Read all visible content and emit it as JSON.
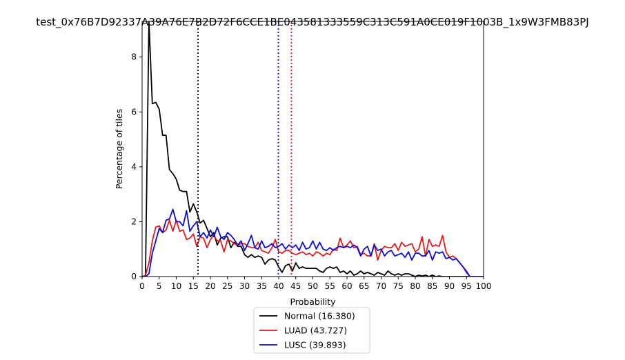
{
  "chart_data": {
    "type": "line",
    "title": "test_0x76B7D92337A39A76E7B2D72F6CCE1BE043581333559C313C591A0CE019F1003B_1x9W3FMB83PJ",
    "xlabel": "Probability",
    "ylabel": "Percentage of tiles",
    "xlim": [
      0,
      100
    ],
    "ylim": [
      0,
      9.3
    ],
    "xticks": [
      0,
      5,
      10,
      15,
      20,
      25,
      30,
      35,
      40,
      45,
      50,
      55,
      60,
      65,
      70,
      75,
      80,
      85,
      90,
      95,
      100
    ],
    "yticks": [
      0,
      2,
      4,
      6,
      8
    ],
    "grid": false,
    "legend_position": "below the plot",
    "x": [
      0,
      1,
      2,
      3,
      4,
      5,
      6,
      7,
      8,
      9,
      10,
      11,
      12,
      13,
      14,
      15,
      16,
      17,
      18,
      19,
      20,
      21,
      22,
      23,
      24,
      25,
      26,
      27,
      28,
      29,
      30,
      31,
      32,
      33,
      34,
      35,
      36,
      37,
      38,
      39,
      40,
      41,
      42,
      43,
      44,
      45,
      46,
      47,
      48,
      49,
      50,
      51,
      52,
      53,
      54,
      55,
      56,
      57,
      58,
      59,
      60,
      61,
      62,
      63,
      64,
      65,
      66,
      67,
      68,
      69,
      70,
      71,
      72,
      73,
      74,
      75,
      76,
      77,
      78,
      79,
      80,
      81,
      82,
      83,
      84,
      85,
      86,
      87,
      88,
      89,
      90,
      91,
      92,
      93,
      94,
      95,
      96,
      97,
      98,
      99,
      100
    ],
    "series": [
      {
        "name": "Normal (16.380)",
        "color": "#000000",
        "values": [
          0,
          0,
          9.3,
          6.3,
          6.35,
          6.1,
          5.15,
          5.15,
          3.9,
          3.75,
          3.55,
          3.15,
          3.1,
          3.1,
          2.35,
          2.65,
          2.35,
          1.95,
          2.05,
          1.75,
          1.45,
          1.6,
          1.15,
          1.4,
          1.45,
          1.45,
          1.05,
          1.25,
          1.1,
          1.1,
          0.8,
          0.7,
          0.8,
          0.7,
          0.75,
          0.7,
          0.45,
          0.6,
          0.65,
          0.6,
          0.35,
          0.15,
          0.4,
          0.45,
          0.2,
          0.5,
          0.3,
          0.35,
          0.3,
          0.3,
          0.3,
          0.3,
          0.2,
          0.15,
          0.3,
          0.35,
          0.3,
          0.35,
          0.15,
          0.2,
          0.1,
          0.2,
          0.05,
          0.1,
          0.2,
          0.1,
          0.15,
          0.1,
          0.05,
          0.15,
          0.1,
          0.05,
          0.2,
          0.1,
          0.05,
          0.1,
          0.05,
          0.1,
          0.1,
          0.05,
          0.0,
          0.05,
          0.02,
          0.05,
          0.0,
          0.05,
          0.0,
          0.02,
          0.0,
          0.0,
          0.0,
          0.0,
          0.0,
          0.0,
          0.0,
          0.0,
          0.0,
          0.0,
          0.0,
          0.0,
          0.0
        ]
      },
      {
        "name": "LUAD (43.727)",
        "color": "#e31a1c",
        "values": [
          0,
          0.05,
          0.5,
          1.3,
          1.8,
          1.85,
          1.6,
          1.7,
          2.05,
          1.65,
          2.05,
          1.65,
          1.7,
          1.35,
          1.4,
          1.55,
          1.1,
          1.45,
          1.4,
          1.05,
          1.35,
          1.5,
          1.3,
          1.3,
          0.9,
          1.35,
          1.3,
          1.2,
          1.15,
          1.2,
          1.2,
          1.1,
          1.05,
          1.05,
          1.25,
          0.95,
          0.9,
          0.85,
          1.05,
          1.35,
          0.9,
          0.85,
          0.95,
          0.95,
          0.85,
          0.8,
          0.85,
          0.9,
          0.8,
          0.85,
          0.75,
          0.9,
          0.85,
          0.75,
          0.85,
          0.8,
          1.0,
          0.95,
          1.4,
          1.05,
          1.15,
          1.3,
          1.05,
          1.1,
          0.8,
          0.85,
          0.75,
          0.75,
          1.2,
          0.6,
          0.95,
          1.1,
          1.05,
          1.05,
          1.2,
          0.95,
          1.25,
          1.1,
          1.15,
          1.2,
          0.9,
          1.0,
          1.45,
          0.75,
          1.35,
          1.1,
          1.15,
          1.1,
          1.5,
          0.9,
          0.7,
          0.75,
          0.65,
          0.5,
          0.35,
          0.2,
          0.0,
          0.0,
          0.0,
          0.0,
          0.0
        ]
      },
      {
        "name": "LUSC (39.893)",
        "color": "#0b0bd6",
        "values": [
          0,
          0.0,
          0.1,
          0.85,
          1.3,
          1.75,
          1.6,
          2.05,
          2.1,
          2.45,
          2.0,
          2.0,
          1.85,
          2.4,
          1.65,
          1.85,
          2.0,
          1.45,
          1.6,
          1.4,
          1.7,
          1.45,
          1.8,
          1.45,
          1.35,
          1.6,
          1.5,
          1.35,
          1.15,
          1.3,
          0.95,
          1.2,
          1.5,
          1.05,
          1.0,
          1.3,
          1.05,
          1.1,
          1.2,
          1.05,
          1.1,
          1.2,
          1.0,
          1.15,
          1.05,
          1.15,
          0.95,
          1.25,
          1.0,
          1.05,
          1.3,
          1.0,
          1.25,
          1.0,
          0.95,
          1.05,
          0.95,
          1.05,
          1.1,
          1.05,
          1.1,
          1.05,
          1.15,
          1.05,
          0.75,
          1.0,
          1.1,
          0.75,
          1.15,
          0.95,
          1.0,
          0.75,
          0.9,
          0.95,
          0.75,
          0.8,
          0.85,
          0.7,
          0.9,
          0.6,
          0.85,
          0.85,
          0.75,
          0.75,
          0.95,
          0.6,
          0.9,
          0.85,
          0.9,
          0.65,
          0.7,
          0.6,
          0.65,
          0.5,
          0.35,
          0.15,
          0.0,
          0.0,
          0.0,
          0.0,
          0.0
        ]
      }
    ],
    "vlines": [
      {
        "x": 16.38,
        "color": "#000000",
        "style": "dotted"
      },
      {
        "x": 39.893,
        "color": "#0b0bd6",
        "style": "dotted"
      },
      {
        "x": 43.727,
        "color": "#e31a1c",
        "style": "dotted"
      }
    ]
  }
}
